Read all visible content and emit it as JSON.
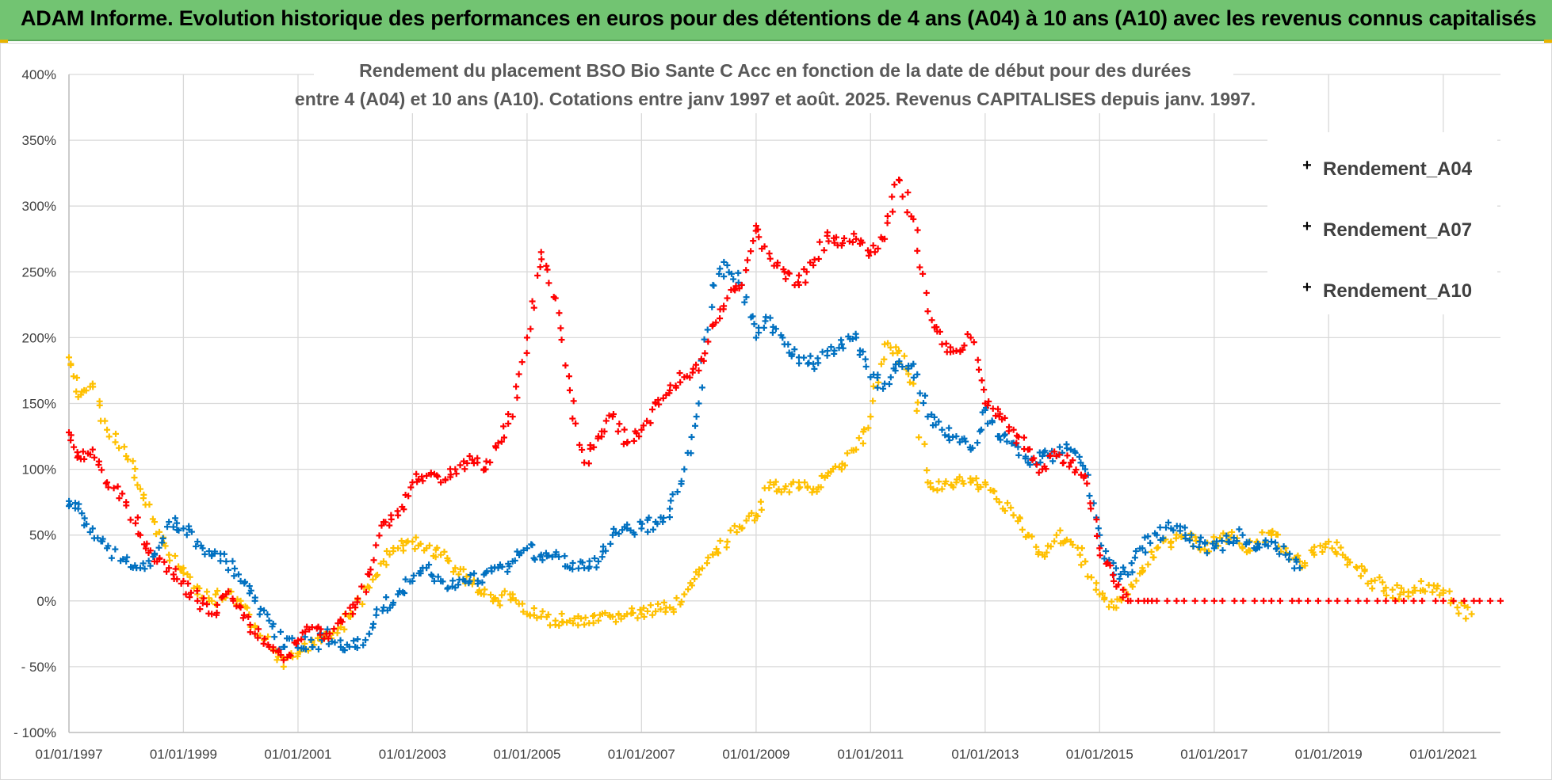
{
  "banner": {
    "title": "ADAM Informe. Evolution historique des performances en euros pour des détentions de 4 ans (A04) à 10 ans (A10) avec les revenus connus capitalisés"
  },
  "colors": {
    "banner": "#72c472",
    "Rendement_A04": "#ffc000",
    "Rendement_A07": "#0070c0",
    "Rendement_A10": "#ff0000",
    "grid": "#d9d9d9"
  },
  "chart_data": {
    "type": "scatter",
    "title_lines": [
      "Rendement du placement BSO Bio Sante C Acc en fonction de la date de début pour des durées",
      "entre 4 (A04) et 10 ans (A10). Cotations entre janv 1997 et août. 2025. Revenus CAPITALISES depuis janv. 1997."
    ],
    "xlabel": "",
    "ylabel": "",
    "x_range": [
      "1997-01-01",
      "2022-01-01"
    ],
    "ylim": [
      -100,
      400
    ],
    "y_ticks": [
      400,
      350,
      300,
      250,
      200,
      150,
      100,
      50,
      0,
      -50,
      -100
    ],
    "y_tick_labels": [
      "400%",
      "350%",
      "300%",
      "250%",
      "200%",
      "150%",
      "100%",
      "50%",
      "0%",
      "- 50%",
      "- 100%"
    ],
    "x_ticks": [
      "1997-01-01",
      "1999-01-01",
      "2001-01-01",
      "2003-01-01",
      "2005-01-01",
      "2007-01-01",
      "2009-01-01",
      "2011-01-01",
      "2013-01-01",
      "2015-01-01",
      "2017-01-01",
      "2019-01-01",
      "2021-01-01"
    ],
    "x_tick_labels": [
      "01/01/1997",
      "01/01/1999",
      "01/01/2001",
      "01/01/2003",
      "01/01/2005",
      "01/01/2007",
      "01/01/2009",
      "01/01/2011",
      "01/01/2013",
      "01/01/2015",
      "01/01/2017",
      "01/01/2019",
      "01/01/2021"
    ],
    "grid": true,
    "legend_position": "top-right",
    "marker": "+",
    "series": [
      {
        "name": "Rendement_A04",
        "points": [
          [
            "1997-01-01",
            185
          ],
          [
            "1997-03-01",
            155
          ],
          [
            "1997-06-01",
            165
          ],
          [
            "1997-09-01",
            130
          ],
          [
            "1998-01-01",
            110
          ],
          [
            "1998-04-01",
            85
          ],
          [
            "1998-07-01",
            60
          ],
          [
            "1998-10-01",
            35
          ],
          [
            "1999-01-01",
            25
          ],
          [
            "1999-04-01",
            5
          ],
          [
            "1999-07-01",
            0
          ],
          [
            "1999-10-01",
            5
          ],
          [
            "2000-01-01",
            0
          ],
          [
            "2000-04-01",
            -20
          ],
          [
            "2000-07-01",
            -35
          ],
          [
            "2000-10-01",
            -50
          ],
          [
            "2001-01-01",
            -40
          ],
          [
            "2001-04-01",
            -30
          ],
          [
            "2001-07-01",
            -25
          ],
          [
            "2001-10-01",
            -20
          ],
          [
            "2002-01-01",
            -5
          ],
          [
            "2002-04-01",
            10
          ],
          [
            "2002-07-01",
            30
          ],
          [
            "2002-10-01",
            40
          ],
          [
            "2003-01-01",
            45
          ],
          [
            "2003-04-01",
            40
          ],
          [
            "2003-07-01",
            35
          ],
          [
            "2003-10-01",
            25
          ],
          [
            "2004-01-01",
            15
          ],
          [
            "2004-04-01",
            5
          ],
          [
            "2004-07-01",
            0
          ],
          [
            "2004-10-01",
            5
          ],
          [
            "2005-01-01",
            -10
          ],
          [
            "2005-04-01",
            -12
          ],
          [
            "2005-07-01",
            -15
          ],
          [
            "2005-10-01",
            -15
          ],
          [
            "2006-01-01",
            -18
          ],
          [
            "2006-04-01",
            -15
          ],
          [
            "2006-07-01",
            -12
          ],
          [
            "2006-10-01",
            -10
          ],
          [
            "2007-01-01",
            -10
          ],
          [
            "2007-04-01",
            -8
          ],
          [
            "2007-07-01",
            -5
          ],
          [
            "2007-10-01",
            5
          ],
          [
            "2008-01-01",
            20
          ],
          [
            "2008-04-01",
            35
          ],
          [
            "2008-07-01",
            45
          ],
          [
            "2008-10-01",
            55
          ],
          [
            "2009-01-01",
            65
          ],
          [
            "2009-04-01",
            90
          ],
          [
            "2009-07-01",
            85
          ],
          [
            "2009-10-01",
            90
          ],
          [
            "2010-01-01",
            85
          ],
          [
            "2010-04-01",
            95
          ],
          [
            "2010-07-01",
            100
          ],
          [
            "2010-10-01",
            115
          ],
          [
            "2011-01-01",
            140
          ],
          [
            "2011-04-01",
            195
          ],
          [
            "2011-07-01",
            190
          ],
          [
            "2011-10-01",
            165
          ],
          [
            "2012-01-01",
            90
          ],
          [
            "2012-04-01",
            85
          ],
          [
            "2012-07-01",
            90
          ],
          [
            "2012-10-01",
            90
          ],
          [
            "2013-01-01",
            90
          ],
          [
            "2013-04-01",
            75
          ],
          [
            "2013-07-01",
            65
          ],
          [
            "2013-10-01",
            50
          ],
          [
            "2014-01-01",
            35
          ],
          [
            "2014-04-01",
            50
          ],
          [
            "2014-07-01",
            45
          ],
          [
            "2014-10-01",
            30
          ],
          [
            "2015-01-01",
            5
          ],
          [
            "2015-04-01",
            -5
          ],
          [
            "2015-07-01",
            5
          ],
          [
            "2015-10-01",
            25
          ],
          [
            "2016-01-01",
            40
          ],
          [
            "2016-04-01",
            45
          ],
          [
            "2016-07-01",
            50
          ],
          [
            "2016-10-01",
            40
          ],
          [
            "2017-01-01",
            45
          ],
          [
            "2017-04-01",
            50
          ],
          [
            "2017-07-01",
            40
          ],
          [
            "2017-10-01",
            45
          ],
          [
            "2018-01-01",
            50
          ],
          [
            "2018-04-01",
            40
          ],
          [
            "2018-07-01",
            30
          ],
          [
            "2018-10-01",
            35
          ],
          [
            "2019-01-01",
            45
          ],
          [
            "2019-04-01",
            35
          ],
          [
            "2019-07-01",
            25
          ],
          [
            "2019-10-01",
            15
          ],
          [
            "2020-01-01",
            10
          ],
          [
            "2020-04-01",
            5
          ],
          [
            "2020-07-01",
            10
          ],
          [
            "2020-10-01",
            12
          ],
          [
            "2021-01-01",
            8
          ],
          [
            "2021-04-01",
            -5
          ],
          [
            "2021-07-01",
            -10
          ]
        ]
      },
      {
        "name": "Rendement_A07",
        "points": [
          [
            "1997-01-01",
            72
          ],
          [
            "1997-03-01",
            70
          ],
          [
            "1997-06-01",
            55
          ],
          [
            "1997-09-01",
            40
          ],
          [
            "1998-01-01",
            30
          ],
          [
            "1998-04-01",
            25
          ],
          [
            "1998-07-01",
            35
          ],
          [
            "1998-10-01",
            60
          ],
          [
            "1999-01-01",
            55
          ],
          [
            "1999-04-01",
            45
          ],
          [
            "1999-07-01",
            35
          ],
          [
            "1999-10-01",
            30
          ],
          [
            "2000-01-01",
            15
          ],
          [
            "2000-04-01",
            0
          ],
          [
            "2000-07-01",
            -15
          ],
          [
            "2000-10-01",
            -35
          ],
          [
            "2001-01-01",
            -30
          ],
          [
            "2001-04-01",
            -35
          ],
          [
            "2001-07-01",
            -25
          ],
          [
            "2001-10-01",
            -35
          ],
          [
            "2002-01-01",
            -35
          ],
          [
            "2002-04-01",
            -25
          ],
          [
            "2002-07-01",
            -5
          ],
          [
            "2002-10-01",
            5
          ],
          [
            "2003-01-01",
            15
          ],
          [
            "2003-04-01",
            25
          ],
          [
            "2003-07-01",
            15
          ],
          [
            "2003-10-01",
            10
          ],
          [
            "2004-01-01",
            15
          ],
          [
            "2004-04-01",
            20
          ],
          [
            "2004-07-01",
            25
          ],
          [
            "2004-10-01",
            30
          ],
          [
            "2005-01-01",
            40
          ],
          [
            "2005-04-01",
            35
          ],
          [
            "2005-07-01",
            35
          ],
          [
            "2005-10-01",
            25
          ],
          [
            "2006-01-01",
            25
          ],
          [
            "2006-04-01",
            30
          ],
          [
            "2006-07-01",
            50
          ],
          [
            "2006-10-01",
            55
          ],
          [
            "2007-01-01",
            55
          ],
          [
            "2007-04-01",
            60
          ],
          [
            "2007-07-01",
            70
          ],
          [
            "2007-10-01",
            100
          ],
          [
            "2008-01-01",
            150
          ],
          [
            "2008-04-01",
            240
          ],
          [
            "2008-07-01",
            255
          ],
          [
            "2008-10-01",
            240
          ],
          [
            "2009-01-01",
            200
          ],
          [
            "2009-04-01",
            215
          ],
          [
            "2009-07-01",
            195
          ],
          [
            "2009-10-01",
            185
          ],
          [
            "2010-01-01",
            180
          ],
          [
            "2010-04-01",
            190
          ],
          [
            "2010-07-01",
            195
          ],
          [
            "2010-10-01",
            200
          ],
          [
            "2011-01-01",
            170
          ],
          [
            "2011-04-01",
            165
          ],
          [
            "2011-07-01",
            180
          ],
          [
            "2011-10-01",
            180
          ],
          [
            "2012-01-01",
            140
          ],
          [
            "2012-04-01",
            130
          ],
          [
            "2012-07-01",
            125
          ],
          [
            "2012-10-01",
            115
          ],
          [
            "2013-01-01",
            145
          ],
          [
            "2013-04-01",
            125
          ],
          [
            "2013-07-01",
            120
          ],
          [
            "2013-10-01",
            105
          ],
          [
            "2014-01-01",
            110
          ],
          [
            "2014-04-01",
            110
          ],
          [
            "2014-07-01",
            115
          ],
          [
            "2014-10-01",
            100
          ],
          [
            "2015-01-01",
            50
          ],
          [
            "2015-04-01",
            20
          ],
          [
            "2015-07-01",
            20
          ],
          [
            "2015-10-01",
            40
          ],
          [
            "2016-01-01",
            50
          ],
          [
            "2016-04-01",
            55
          ],
          [
            "2016-07-01",
            50
          ],
          [
            "2016-10-01",
            45
          ],
          [
            "2017-01-01",
            40
          ],
          [
            "2017-04-01",
            45
          ],
          [
            "2017-07-01",
            50
          ],
          [
            "2017-10-01",
            40
          ],
          [
            "2018-01-01",
            45
          ],
          [
            "2018-04-01",
            35
          ],
          [
            "2018-07-01",
            25
          ]
        ]
      },
      {
        "name": "Rendement_A10",
        "points": [
          [
            "1997-01-01",
            128
          ],
          [
            "1997-03-01",
            110
          ],
          [
            "1997-06-01",
            115
          ],
          [
            "1997-09-01",
            90
          ],
          [
            "1998-01-01",
            75
          ],
          [
            "1998-04-01",
            50
          ],
          [
            "1998-07-01",
            30
          ],
          [
            "1998-10-01",
            25
          ],
          [
            "1999-01-01",
            15
          ],
          [
            "1999-04-01",
            0
          ],
          [
            "1999-07-01",
            -10
          ],
          [
            "1999-10-01",
            5
          ],
          [
            "2000-01-01",
            -5
          ],
          [
            "2000-04-01",
            -25
          ],
          [
            "2000-07-01",
            -35
          ],
          [
            "2000-10-01",
            -45
          ],
          [
            "2001-01-01",
            -30
          ],
          [
            "2001-04-01",
            -20
          ],
          [
            "2001-07-01",
            -25
          ],
          [
            "2001-10-01",
            -15
          ],
          [
            "2002-01-01",
            -5
          ],
          [
            "2002-04-01",
            20
          ],
          [
            "2002-07-01",
            60
          ],
          [
            "2002-10-01",
            65
          ],
          [
            "2003-01-01",
            90
          ],
          [
            "2003-04-01",
            95
          ],
          [
            "2003-07-01",
            90
          ],
          [
            "2003-10-01",
            100
          ],
          [
            "2004-01-01",
            110
          ],
          [
            "2004-04-01",
            100
          ],
          [
            "2004-07-01",
            120
          ],
          [
            "2004-10-01",
            140
          ],
          [
            "2005-01-01",
            200
          ],
          [
            "2005-04-01",
            265
          ],
          [
            "2005-07-01",
            230
          ],
          [
            "2005-10-01",
            160
          ],
          [
            "2006-01-01",
            105
          ],
          [
            "2006-04-01",
            125
          ],
          [
            "2006-07-01",
            140
          ],
          [
            "2006-10-01",
            120
          ],
          [
            "2007-01-01",
            130
          ],
          [
            "2007-04-01",
            150
          ],
          [
            "2007-07-01",
            160
          ],
          [
            "2007-10-01",
            170
          ],
          [
            "2008-01-01",
            175
          ],
          [
            "2008-04-01",
            210
          ],
          [
            "2008-07-01",
            230
          ],
          [
            "2008-10-01",
            240
          ],
          [
            "2009-01-01",
            285
          ],
          [
            "2009-04-01",
            260
          ],
          [
            "2009-07-01",
            250
          ],
          [
            "2009-10-01",
            240
          ],
          [
            "2010-01-01",
            255
          ],
          [
            "2010-04-01",
            280
          ],
          [
            "2010-07-01",
            270
          ],
          [
            "2010-10-01",
            275
          ],
          [
            "2011-01-01",
            265
          ],
          [
            "2011-04-01",
            275
          ],
          [
            "2011-07-01",
            320
          ],
          [
            "2011-10-01",
            290
          ],
          [
            "2012-01-01",
            220
          ],
          [
            "2012-04-01",
            195
          ],
          [
            "2012-07-01",
            190
          ],
          [
            "2012-10-01",
            200
          ],
          [
            "2013-01-01",
            150
          ],
          [
            "2013-04-01",
            140
          ],
          [
            "2013-07-01",
            130
          ],
          [
            "2013-10-01",
            115
          ],
          [
            "2014-01-01",
            100
          ],
          [
            "2014-04-01",
            110
          ],
          [
            "2014-07-01",
            105
          ],
          [
            "2014-10-01",
            95
          ],
          [
            "2015-01-01",
            40
          ],
          [
            "2015-04-01",
            15
          ],
          [
            "2015-07-01",
            0
          ],
          [
            "2016-01-01",
            0
          ],
          [
            "2017-01-01",
            0
          ],
          [
            "2018-01-01",
            0
          ],
          [
            "2019-01-01",
            0
          ],
          [
            "2020-01-01",
            0
          ],
          [
            "2021-01-01",
            0
          ],
          [
            "2022-01-01",
            0
          ]
        ]
      }
    ]
  }
}
